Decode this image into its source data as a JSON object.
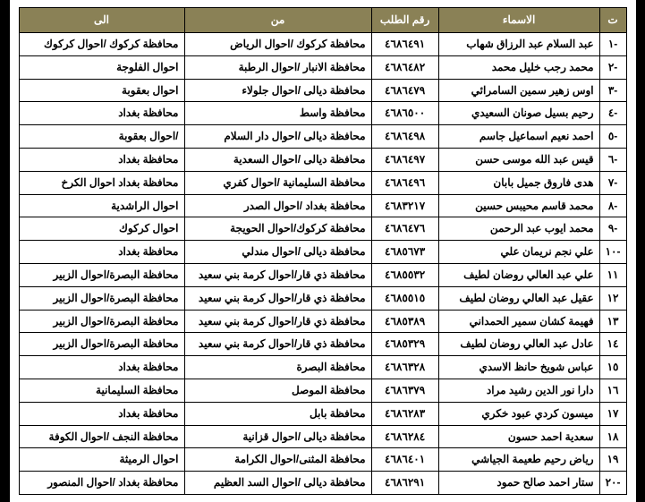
{
  "header": {
    "seq": "ت",
    "name": "الاسماء",
    "req": "رقم الطلب",
    "from": "من",
    "to": "الى"
  },
  "rows": [
    {
      "seq": "-١",
      "name": "عبد السلام عبد الرزاق شهاب",
      "req": "٤٦٨٦٤٩١",
      "from": "محافظة كركوك /احوال الرياض",
      "to": "محافظة كركوك /احوال كركوك"
    },
    {
      "seq": "-٢",
      "name": "محمد رجب خليل محمد",
      "req": "٤٦٨٦٤٨٢",
      "from": "محافظة الانبار /احوال الرطبة",
      "to": "احوال الفلوجة"
    },
    {
      "seq": "-٣",
      "name": "اوس زهير سمين السامرائي",
      "req": "٤٦٨٦٤٧٩",
      "from": "محافظة ديالى /احوال جلولاء",
      "to": "احوال بعقوبة"
    },
    {
      "seq": "-٤",
      "name": "رحيم بسيل صونان السعيدي",
      "req": "٤٦٨٦٥٠٠",
      "from": "محافظة واسط",
      "to": "محافظة بغداد"
    },
    {
      "seq": "-٥",
      "name": "احمد نعيم اسماعيل جاسم",
      "req": "٤٦٨٦٤٩٨",
      "from": "محافظة ديالى /احوال دار السلام",
      "to": "/احوال بعقوبة"
    },
    {
      "seq": "-٦",
      "name": "قيس عبد الله موسى حسن",
      "req": "٤٦٨٦٤٩٧",
      "from": "محافظة ديالى /احوال السعدية",
      "to": "محافظة بغداد"
    },
    {
      "seq": "-٧",
      "name": "هدى فاروق جميل بابان",
      "req": "٤٦٨٦٤٩٦",
      "from": "محافظة السليمانية /احوال كفري",
      "to": "محافظة بغداد احوال الكرخ"
    },
    {
      "seq": "-٨",
      "name": "محمد قاسم محيبس حسين",
      "req": "٤٦٨٣٢١٧",
      "from": "محافظة بغداد /احوال الصدر",
      "to": "احوال الراشدية"
    },
    {
      "seq": "-٩",
      "name": "محمد ايوب عبد الرحمن",
      "req": "٤٦٨٦٤٧٦",
      "from": "محافظة كركوك/احوال الحويجة",
      "to": "احوال كركوك"
    },
    {
      "seq": "-١٠",
      "name": "علي نجم نريمان علي",
      "req": "٤٦٨٥٦٧٣",
      "from": "محافظة ديالى /احوال مندلي",
      "to": "محافظة بغداد"
    },
    {
      "seq": "١١",
      "name": "علي عبد العالي روضان لطيف",
      "req": "٤٦٨٥٥٣٢",
      "from": "محافظة ذي قار/احوال كرمة بني سعيد",
      "to": "محافظة البصرة/احوال الزبير"
    },
    {
      "seq": "١٢",
      "name": "عقيل عبد العالي روضان لطيف",
      "req": "٤٦٨٥٥١٥",
      "from": "محافظة ذي قار/احوال كرمة بني سعيد",
      "to": "محافظة البصرة/احوال الزبير"
    },
    {
      "seq": "١٣",
      "name": "فهيمة كشان سمير الحمداني",
      "req": "٤٦٨٥٣٨٩",
      "from": "محافظة ذي قار/احوال كرمة بني سعيد",
      "to": "محافظة البصرة/احوال الزبير"
    },
    {
      "seq": "١٤",
      "name": "عادل عبد العالي روضان لطيف",
      "req": "٤٦٨٥٣٢٩",
      "from": "محافظة ذي قار/احوال كرمة بني سعيد",
      "to": "محافظة البصرة/احوال الزبير"
    },
    {
      "seq": "١٥",
      "name": "عباس شويخ حانظ الاسدي",
      "req": "٤٦٨٦٣٢٨",
      "from": "محافظة البصرة",
      "to": "محافظة بغداد"
    },
    {
      "seq": "١٦",
      "name": "دارا نور الدين رشيد مراد",
      "req": "٤٦٨٦٣٧٩",
      "from": "محافظة الموصل",
      "to": "محافظة السليمانية"
    },
    {
      "seq": "١٧",
      "name": "ميسون كردي عبود خكري",
      "req": "٤٦٨٦٢٨٣",
      "from": "محافظة بابل",
      "to": "محافظة بغداد"
    },
    {
      "seq": "١٨",
      "name": "سعدية احمد حسون",
      "req": "٤٦٨٦٢٨٤",
      "from": "محافظة ديالى /احوال قزانية",
      "to": "محافظة النجف /احوال الكوفة"
    },
    {
      "seq": "١٩",
      "name": "رياض رحيم طعيمة الجياشي",
      "req": "٤٦٨٦٤٠١",
      "from": "محافظة المثنى/احوال الكرامة",
      "to": "احوال الرميثة"
    },
    {
      "seq": "-٢٠",
      "name": "ستار احمد صالح حمود",
      "req": "٤٦٨٦٢٩١",
      "from": "محافظة ديالى /احوال السد العظيم",
      "to": "محافظة بغداد /احوال المنصور"
    }
  ]
}
